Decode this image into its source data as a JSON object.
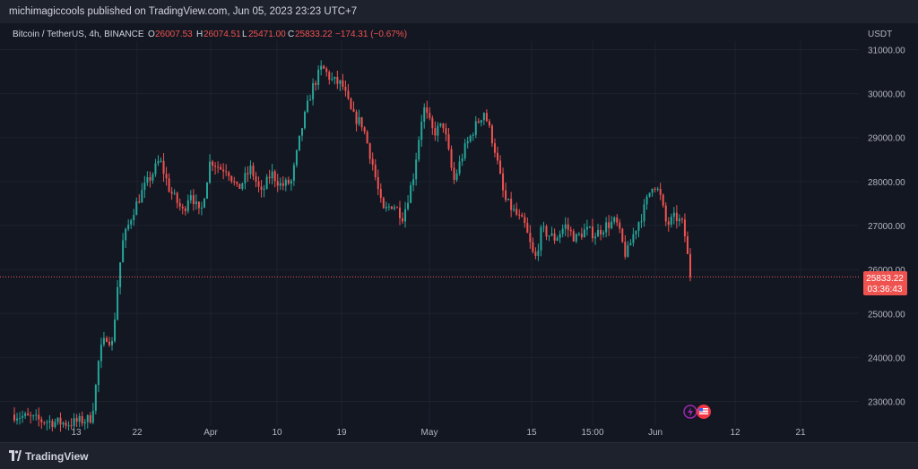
{
  "header": {
    "published_line": "michimagiccools published on TradingView.com, Jun 05, 2023 23:23 UTC+7"
  },
  "legend": {
    "symbol": "Bitcoin / TetherUS, 4h, BINANCE",
    "open_label": "O",
    "open": "26007.53",
    "high_label": "H",
    "high": "26074.51",
    "low_label": "L",
    "low": "25471.00",
    "close_label": "C",
    "close": "25833.22",
    "change": "−174.31 (−0.67%)"
  },
  "footer": {
    "brand": "TradingView"
  },
  "colors": {
    "background": "#131722",
    "up": "#26a69a",
    "down": "#ef5350",
    "grid": "#1e222d",
    "text": "#d1d4dc",
    "axis_text": "#b2b5be"
  },
  "chart_data": {
    "type": "candlestick",
    "currency_label": "USDT",
    "ylim": [
      22400,
      31600
    ],
    "ytick_values": [
      23000,
      24000,
      25000,
      26000,
      27000,
      28000,
      29000,
      30000,
      31000
    ],
    "ytick_labels": [
      "23000.00",
      "24000.00",
      "25000.00",
      "26000.00",
      "27000.00",
      "28000.00",
      "29000.00",
      "30000.00",
      "31000.00"
    ],
    "xtick_labels": [
      "13",
      "22",
      "Apr",
      "10",
      "19",
      "May",
      "15",
      "15:00",
      "Jun",
      "12",
      "21"
    ],
    "last_price": {
      "value": 25833.22,
      "label": "25833.22",
      "countdown": "03:36:43",
      "color": "#ef5350"
    },
    "price_path": [
      [
        0,
        22700
      ],
      [
        0.04,
        22560
      ],
      [
        0.08,
        22500
      ],
      [
        0.112,
        22600
      ],
      [
        0.118,
        23000
      ],
      [
        0.126,
        24100
      ],
      [
        0.137,
        24500
      ],
      [
        0.145,
        24300
      ],
      [
        0.153,
        25700
      ],
      [
        0.16,
        26600
      ],
      [
        0.175,
        27300
      ],
      [
        0.19,
        27800
      ],
      [
        0.205,
        28200
      ],
      [
        0.215,
        28500
      ],
      [
        0.23,
        27800
      ],
      [
        0.25,
        27300
      ],
      [
        0.26,
        27800
      ],
      [
        0.275,
        27200
      ],
      [
        0.29,
        28500
      ],
      [
        0.305,
        28300
      ],
      [
        0.315,
        28300
      ],
      [
        0.33,
        27800
      ],
      [
        0.35,
        28300
      ],
      [
        0.365,
        27700
      ],
      [
        0.38,
        28200
      ],
      [
        0.395,
        27900
      ],
      [
        0.41,
        28000
      ],
      [
        0.425,
        29200
      ],
      [
        0.44,
        30100
      ],
      [
        0.455,
        30600
      ],
      [
        0.47,
        30300
      ],
      [
        0.485,
        30200
      ],
      [
        0.5,
        29500
      ],
      [
        0.515,
        29300
      ],
      [
        0.53,
        28400
      ],
      [
        0.545,
        27300
      ],
      [
        0.56,
        27500
      ],
      [
        0.575,
        27200
      ],
      [
        0.59,
        28100
      ],
      [
        0.605,
        29700
      ],
      [
        0.62,
        29100
      ],
      [
        0.635,
        29300
      ],
      [
        0.65,
        28000
      ],
      [
        0.665,
        28700
      ],
      [
        0.68,
        29200
      ],
      [
        0.695,
        29600
      ],
      [
        0.71,
        28800
      ],
      [
        0.725,
        27600
      ],
      [
        0.74,
        27300
      ],
      [
        0.755,
        27000
      ],
      [
        0.77,
        26200
      ],
      [
        0.78,
        26900
      ],
      [
        0.8,
        26700
      ],
      [
        0.815,
        27000
      ],
      [
        0.83,
        26700
      ],
      [
        0.845,
        26900
      ],
      [
        0.86,
        26800
      ],
      [
        0.875,
        27000
      ],
      [
        0.89,
        27100
      ],
      [
        0.905,
        26300
      ],
      [
        0.918,
        26900
      ],
      [
        0.93,
        27300
      ],
      [
        0.945,
        28000
      ],
      [
        0.955,
        27700
      ],
      [
        0.965,
        27000
      ],
      [
        0.978,
        27200
      ],
      [
        0.99,
        27000
      ],
      [
        1.0,
        25833
      ]
    ],
    "series": [
      {
        "name": "Bitcoin / TetherUS",
        "last_value": 25833.22,
        "ohlc_last": [
          26007.53,
          26074.51,
          25471.0,
          25833.22
        ]
      }
    ]
  }
}
